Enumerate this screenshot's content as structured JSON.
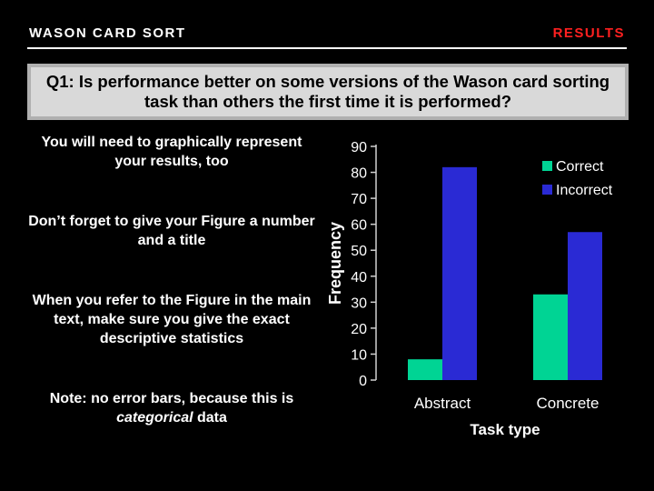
{
  "header": {
    "left_title": "WASON CARD SORT",
    "right_title": "RESULTS"
  },
  "question": "Q1: Is performance better on some versions of the Wason card sorting task than others the first time it is performed?",
  "notes": {
    "n1": "You will need to graphically represent your results, too",
    "n2": "Don’t forget to give your Figure a number and a title",
    "n3": "When you refer to the Figure in the main text, make sure you give the exact descriptive statistics",
    "n4_prefix": "Note: no error bars, because this is ",
    "n4_em": "categorical",
    "n4_suffix": " data"
  },
  "colors": {
    "background": "#000000",
    "accent_red": "#ff2020",
    "correct": "#00d494",
    "incorrect": "#2a2ad4"
  },
  "chart_data": {
    "type": "bar",
    "categories": [
      "Abstract",
      "Concrete"
    ],
    "series": [
      {
        "name": "Correct",
        "values": [
          8,
          33
        ]
      },
      {
        "name": "Incorrect",
        "values": [
          82,
          57
        ]
      }
    ],
    "title": "",
    "xlabel": "Task type",
    "ylabel": "Frequency",
    "ylim": [
      0,
      90
    ],
    "yticks": [
      0,
      10,
      20,
      30,
      40,
      50,
      60,
      70,
      80,
      90
    ],
    "grid": false,
    "legend": "top-right"
  }
}
